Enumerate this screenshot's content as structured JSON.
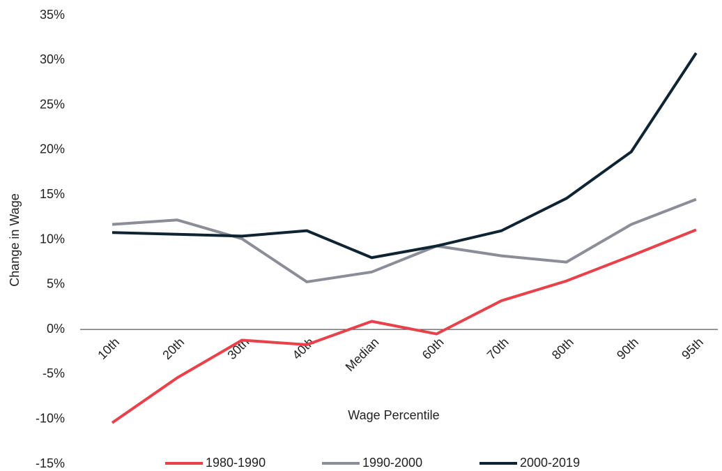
{
  "chart_data": {
    "type": "line",
    "y_label": "Change in Wage",
    "x_label": "Wage Percentile",
    "categories": [
      "10th",
      "20th",
      "30th",
      "40th",
      "Median",
      "60th",
      "70th",
      "80th",
      "90th",
      "95th"
    ],
    "series": [
      {
        "name": "1980-1990",
        "color": "#e8414a",
        "values": [
          -10.4,
          -5.4,
          -1.2,
          -1.7,
          0.9,
          -0.5,
          3.2,
          5.4,
          8.2,
          11.1
        ]
      },
      {
        "name": "1990-2000",
        "color": "#8b8d98",
        "values": [
          11.7,
          12.2,
          10.1,
          5.3,
          6.4,
          9.3,
          8.2,
          7.5,
          11.7,
          14.5
        ]
      },
      {
        "name": "2000-2019",
        "color": "#0f2433",
        "values": [
          10.8,
          10.6,
          10.4,
          11.0,
          8.0,
          9.3,
          11.0,
          14.6,
          19.8,
          30.8
        ]
      }
    ],
    "ylim": [
      -15,
      35
    ],
    "yticks": [
      {
        "value": -15,
        "label": "-15%"
      },
      {
        "value": -10,
        "label": "-10%"
      },
      {
        "value": -5,
        "label": "-5%"
      },
      {
        "value": 0,
        "label": "0%"
      },
      {
        "value": 5,
        "label": "5%"
      },
      {
        "value": 10,
        "label": "10%"
      },
      {
        "value": 15,
        "label": "15%"
      },
      {
        "value": 20,
        "label": "20%"
      },
      {
        "value": 25,
        "label": "25%"
      },
      {
        "value": 30,
        "label": "30%"
      },
      {
        "value": 35,
        "label": "35%"
      }
    ],
    "grid": false,
    "legend": "bottom"
  }
}
